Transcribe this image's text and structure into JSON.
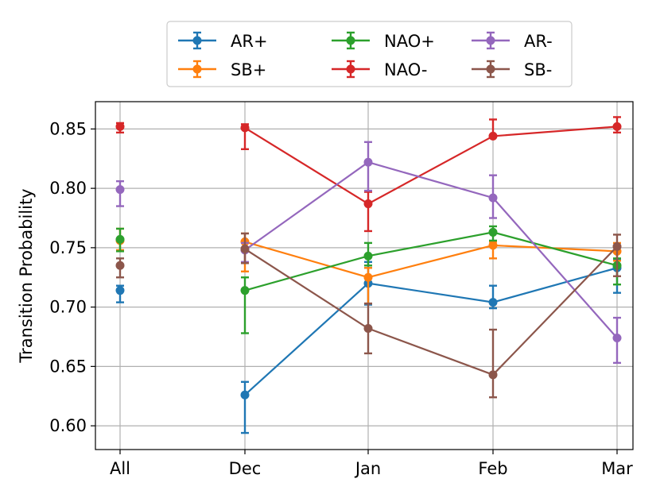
{
  "chart_data": {
    "type": "line",
    "title": "",
    "xlabel": "",
    "ylabel": "Transition Probability",
    "ylim": [
      0.58,
      0.873
    ],
    "yticks": [
      "0.60",
      "0.65",
      "0.70",
      "0.75",
      "0.80",
      "0.85"
    ],
    "categories": [
      "All",
      "Dec",
      "Jan",
      "Feb",
      "Mar"
    ],
    "grid": true,
    "legend_placement": "top",
    "series": [
      {
        "name": "AR+",
        "color": "#1f77b4",
        "values": [
          0.714,
          0.626,
          0.72,
          0.704,
          0.733
        ],
        "err_low": [
          0.704,
          0.594,
          0.702,
          0.699,
          0.712
        ],
        "err_high": [
          0.718,
          0.637,
          0.738,
          0.718,
          0.74
        ]
      },
      {
        "name": "SB+",
        "color": "#ff7f0e",
        "values": [
          0.756,
          0.755,
          0.725,
          0.752,
          0.747
        ],
        "err_low": [
          0.748,
          0.73,
          0.703,
          0.741,
          0.739
        ],
        "err_high": [
          0.766,
          0.762,
          0.733,
          0.755,
          0.754
        ]
      },
      {
        "name": "NAO+",
        "color": "#2ca02c",
        "values": [
          0.757,
          0.714,
          0.743,
          0.763,
          0.735
        ],
        "err_low": [
          0.747,
          0.678,
          0.735,
          0.756,
          0.719
        ],
        "err_high": [
          0.766,
          0.725,
          0.754,
          0.768,
          0.741
        ]
      },
      {
        "name": "NAO-",
        "color": "#d62728",
        "values": [
          0.852,
          0.851,
          0.787,
          0.844,
          0.852
        ],
        "err_low": [
          0.847,
          0.833,
          0.764,
          0.844,
          0.847
        ],
        "err_high": [
          0.855,
          0.854,
          0.797,
          0.858,
          0.86
        ]
      },
      {
        "name": "AR-",
        "color": "#9467bd",
        "values": [
          0.799,
          0.748,
          0.822,
          0.792,
          0.674
        ],
        "err_low": [
          0.785,
          0.738,
          0.798,
          0.775,
          0.653
        ],
        "err_high": [
          0.806,
          0.754,
          0.839,
          0.811,
          0.691
        ]
      },
      {
        "name": "SB-",
        "color": "#8c564b",
        "values": [
          0.735,
          0.749,
          0.682,
          0.643,
          0.751
        ],
        "err_low": [
          0.725,
          0.737,
          0.661,
          0.624,
          0.726
        ],
        "err_high": [
          0.741,
          0.762,
          0.703,
          0.681,
          0.761
        ]
      }
    ]
  }
}
